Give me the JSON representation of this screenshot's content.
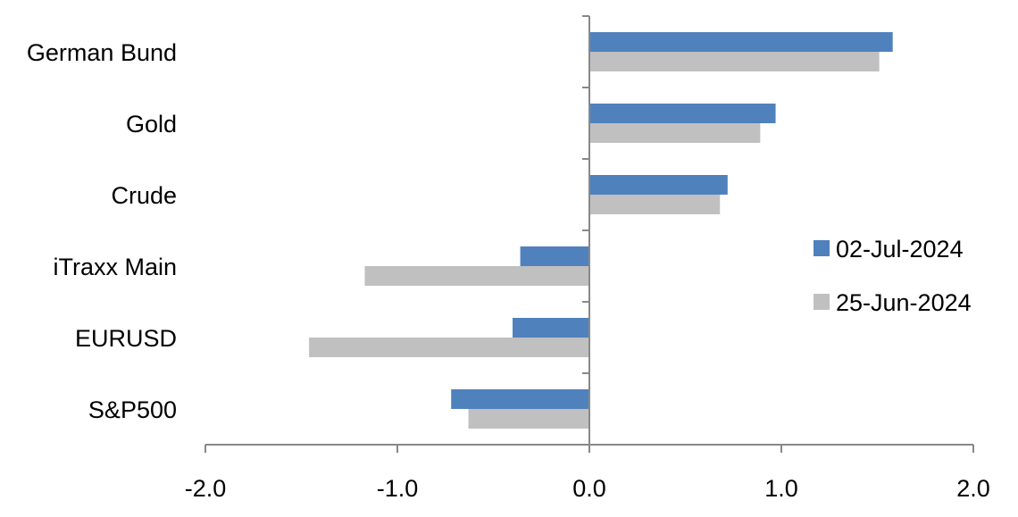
{
  "chart_data": {
    "type": "bar",
    "orientation": "horizontal",
    "categories": [
      "German Bund",
      "Gold",
      "Crude",
      "iTraxx Main",
      "EURUSD",
      "S&P500"
    ],
    "series": [
      {
        "name": "02-Jul-2024",
        "color": "#4f81bd",
        "values": [
          1.58,
          0.97,
          0.72,
          -0.36,
          -0.4,
          -0.72
        ]
      },
      {
        "name": "25-Jun-2024",
        "color": "#c0c0c0",
        "values": [
          1.51,
          0.89,
          0.68,
          -1.17,
          -1.46,
          -0.63
        ]
      }
    ],
    "xlim": [
      -2.0,
      2.0
    ],
    "xticks": [
      "-2.0",
      "-1.0",
      "0.0",
      "1.0",
      "2.0"
    ],
    "xtick_values": [
      -2,
      -1,
      0,
      1,
      2
    ],
    "grid": false,
    "legend": "right"
  }
}
